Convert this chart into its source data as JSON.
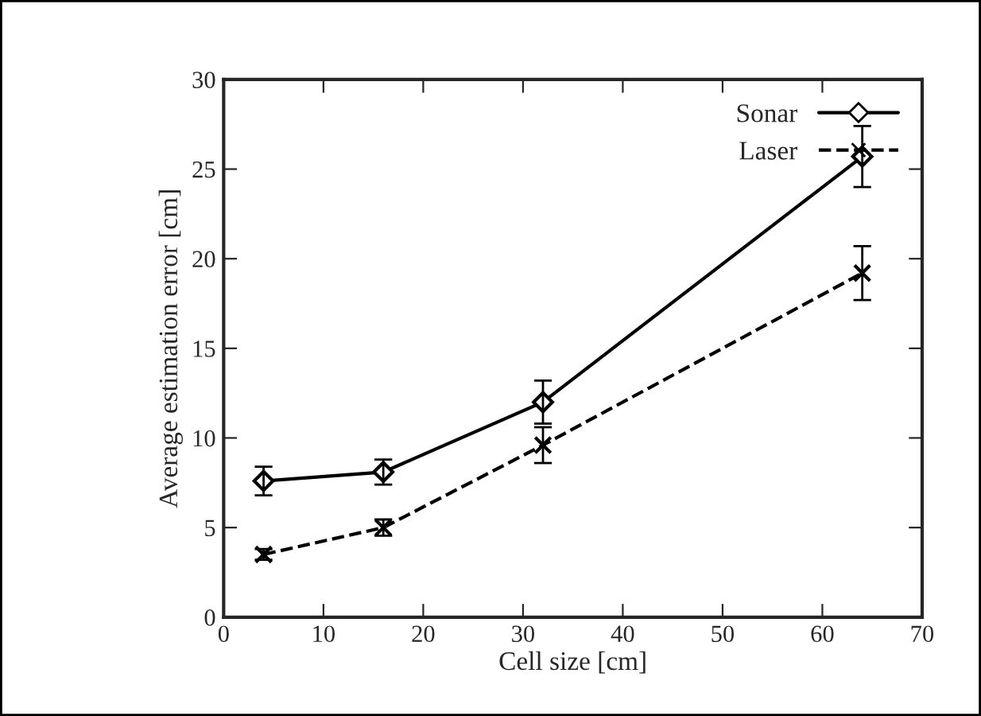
{
  "chart_data": {
    "type": "line",
    "xlabel": "Cell size [cm]",
    "ylabel": "Average estimation error [cm]",
    "x": [
      4,
      16,
      32,
      64
    ],
    "series": [
      {
        "name": "Sonar",
        "color": "#000000",
        "values": [
          7.6,
          8.1,
          12.0,
          25.7
        ],
        "errors": [
          0.8,
          0.7,
          1.2,
          1.7
        ],
        "marker": "diamond",
        "line_style": "solid"
      },
      {
        "name": "Laser",
        "color": "#000000",
        "values": [
          3.5,
          5.0,
          9.6,
          19.2
        ],
        "errors": [
          0.3,
          0.45,
          1.0,
          1.5
        ],
        "marker": "cross",
        "line_style": "dashed"
      }
    ],
    "xlim": [
      0,
      70
    ],
    "ylim": [
      0,
      30
    ],
    "xticks": [
      0,
      10,
      20,
      30,
      40,
      50,
      60,
      70
    ],
    "yticks": [
      0,
      5,
      10,
      15,
      20,
      25,
      30
    ],
    "grid": false,
    "legend": "top right"
  }
}
